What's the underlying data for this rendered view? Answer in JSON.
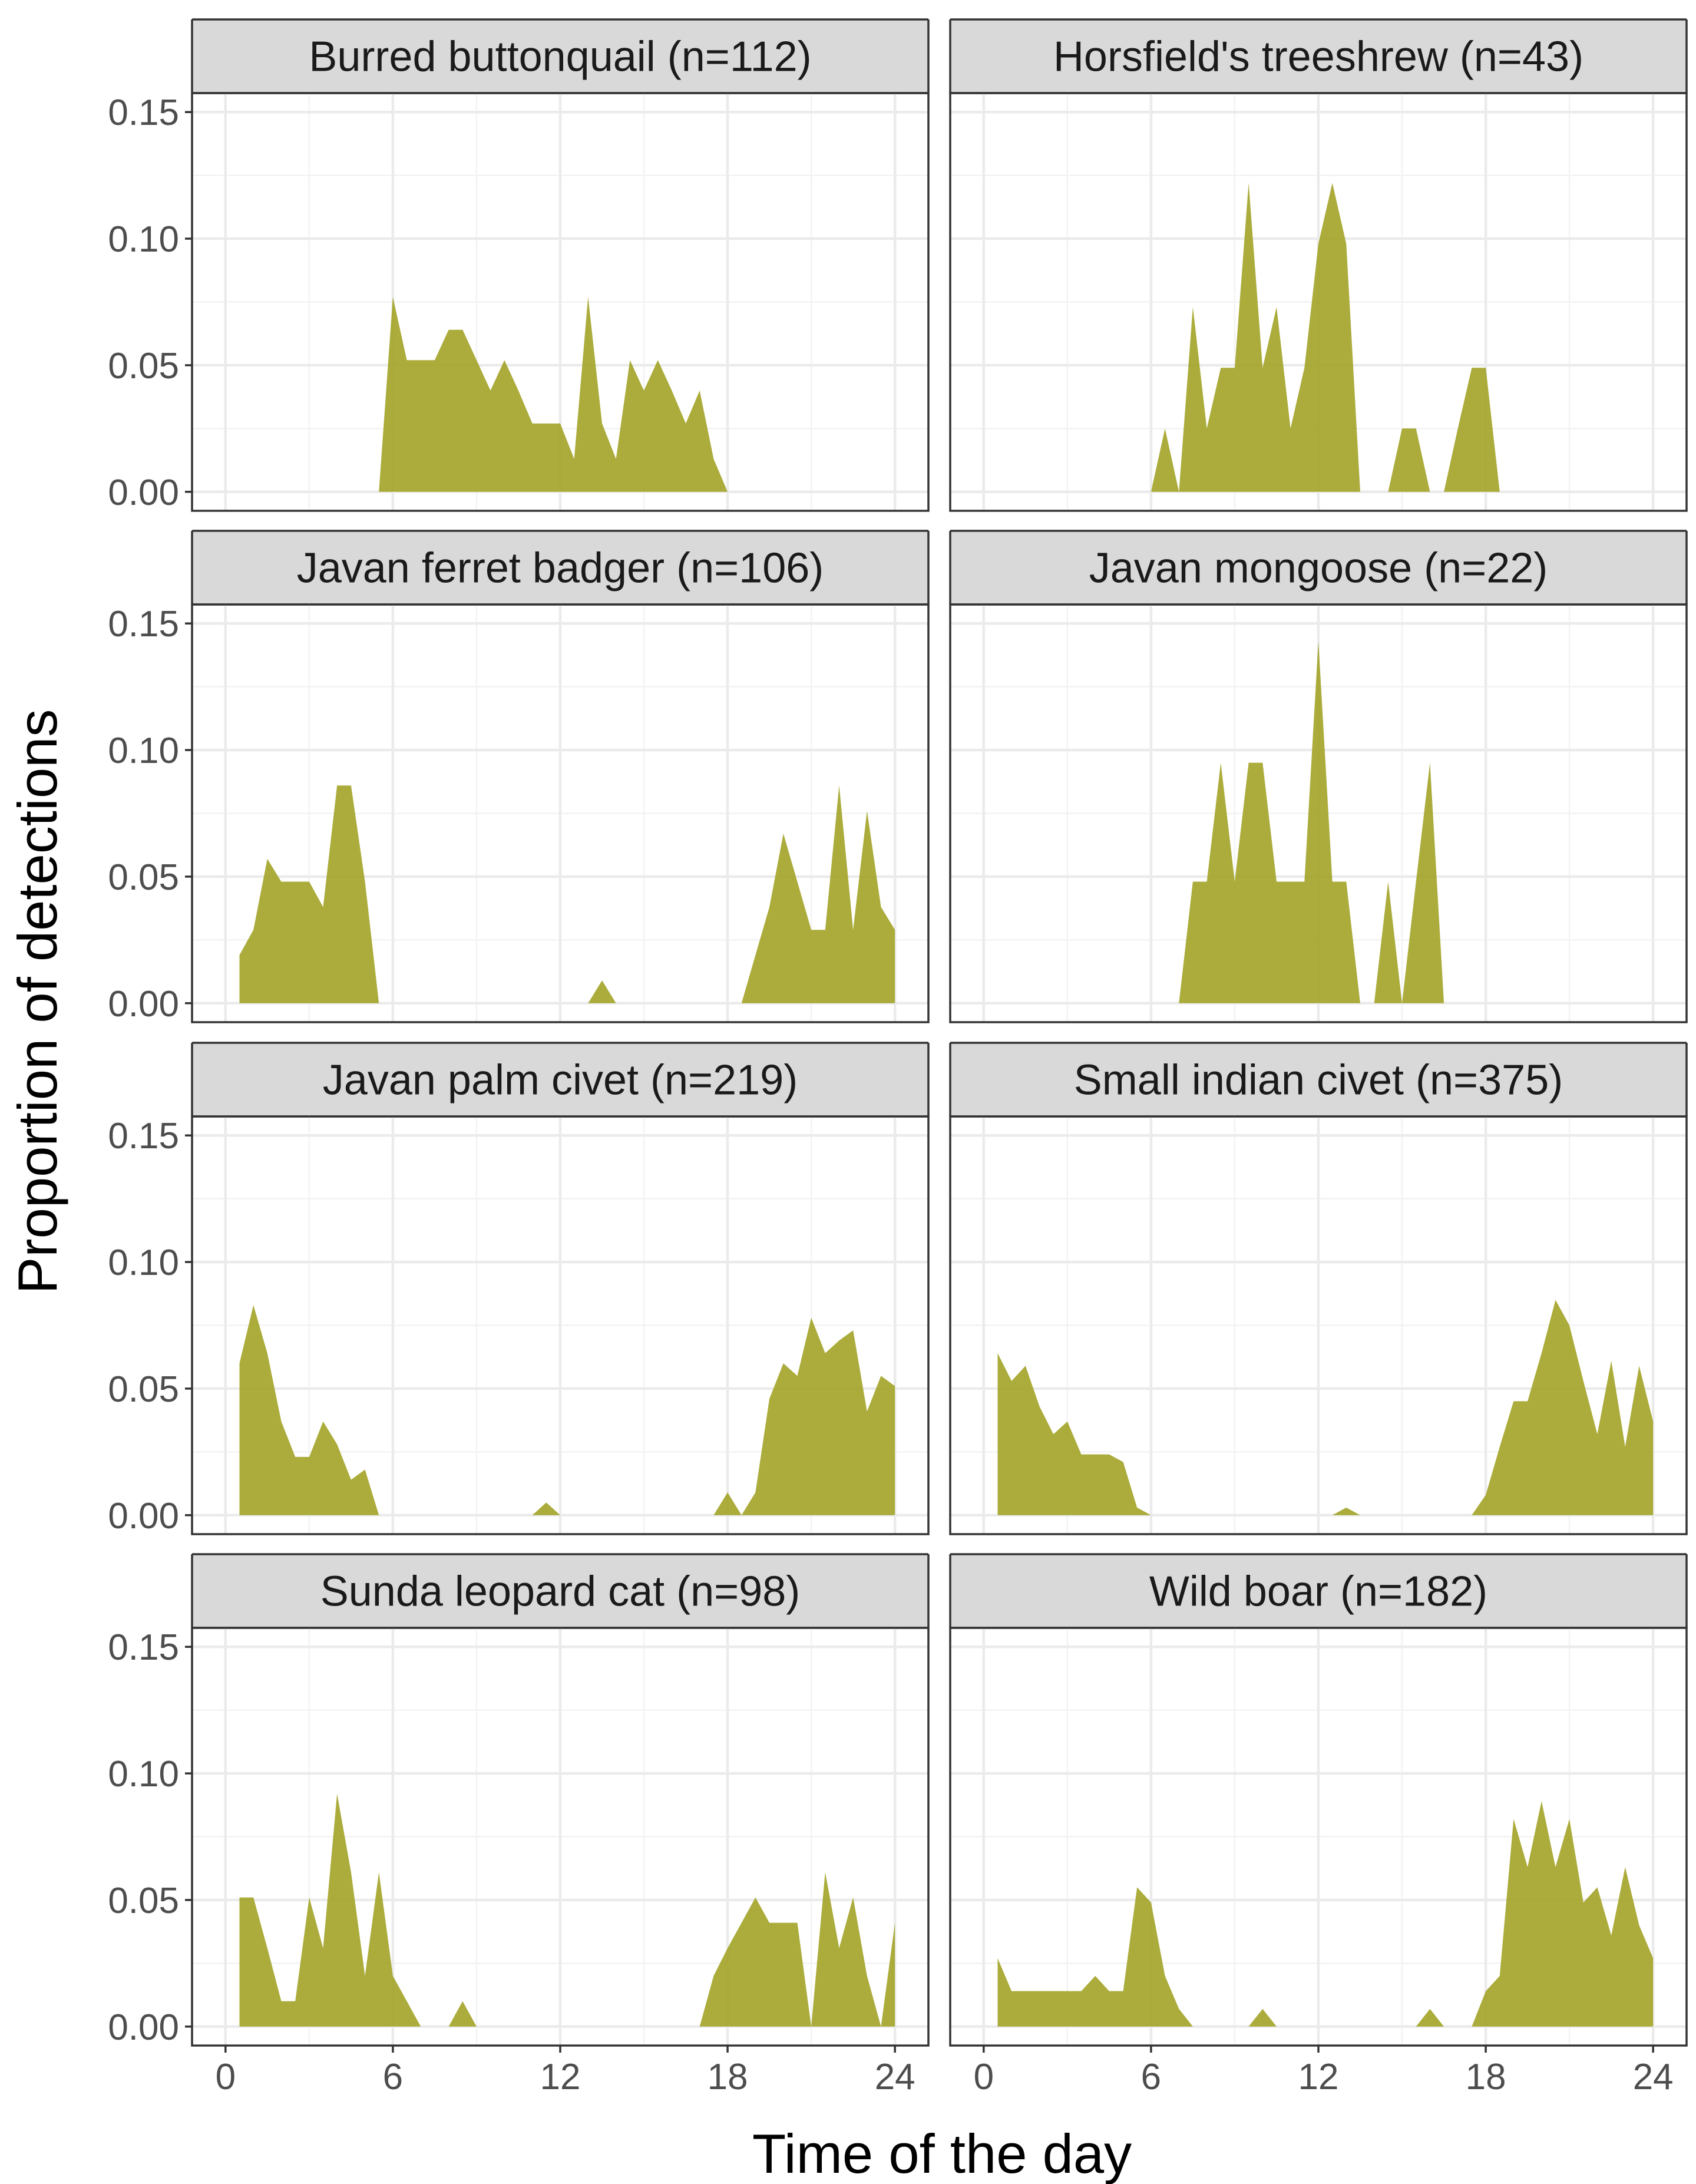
{
  "chart_data": {
    "type": "area",
    "layout": "facet grid, 4 rows x 2 columns",
    "xlabel": "Time of the day",
    "ylabel": "Proportion of detections",
    "xlim": [
      -1.2,
      25.2
    ],
    "ylim": [
      -0.0075,
      0.1575
    ],
    "x_ticks": [
      0,
      6,
      12,
      18,
      24
    ],
    "x_tick_labels": [
      "0",
      "6",
      "12",
      "18",
      "24"
    ],
    "y_ticks": [
      0,
      0.05,
      0.1,
      0.15
    ],
    "y_tick_labels": [
      "0.00",
      "0.05",
      "0.10",
      "0.15"
    ],
    "fill_color": "#9fa020",
    "panels": [
      {
        "title": "Burred buttonquail (n=112)",
        "x": [
          5.5,
          6.0,
          6.5,
          7.0,
          7.5,
          8.0,
          8.5,
          9.0,
          9.5,
          10.0,
          10.5,
          11.0,
          11.5,
          12.0,
          12.5,
          13.0,
          13.5,
          14.0,
          14.5,
          15.0,
          15.5,
          16.0,
          16.5,
          17.0,
          17.5,
          18.0
        ],
        "values": [
          0.0,
          0.077,
          0.052,
          0.052,
          0.052,
          0.064,
          0.064,
          0.052,
          0.04,
          0.052,
          0.04,
          0.027,
          0.027,
          0.027,
          0.013,
          0.077,
          0.027,
          0.013,
          0.052,
          0.04,
          0.052,
          0.04,
          0.027,
          0.04,
          0.013,
          0.0
        ]
      },
      {
        "title": "Horsfield's treeshrew (n=43)",
        "x": [
          6.0,
          6.5,
          7.0,
          7.5,
          8.0,
          8.5,
          9.0,
          9.5,
          10.0,
          10.5,
          11.0,
          11.5,
          12.0,
          12.5,
          13.0,
          13.5,
          14.5,
          15.0,
          15.5,
          16.0,
          16.5,
          17.0,
          17.5,
          18.0,
          18.5
        ],
        "values": [
          0.0,
          0.025,
          0.0,
          0.073,
          0.025,
          0.049,
          0.049,
          0.122,
          0.049,
          0.073,
          0.025,
          0.049,
          0.098,
          0.122,
          0.098,
          0.0,
          0.0,
          0.025,
          0.025,
          0.0,
          0.0,
          0.025,
          0.049,
          0.049,
          0.0
        ]
      },
      {
        "title": "Javan ferret badger (n=106)",
        "x": [
          0.5,
          1.0,
          1.5,
          2.0,
          2.5,
          3.0,
          3.5,
          4.0,
          4.5,
          5.0,
          5.5,
          13.0,
          13.5,
          14.0,
          18.5,
          19.0,
          19.5,
          20.0,
          20.5,
          21.0,
          21.5,
          22.0,
          22.5,
          23.0,
          23.5,
          24.0
        ],
        "values": [
          0.019,
          0.029,
          0.057,
          0.048,
          0.048,
          0.048,
          0.038,
          0.086,
          0.086,
          0.048,
          0.0,
          0.0,
          0.009,
          0.0,
          0.0,
          0.019,
          0.038,
          0.067,
          0.048,
          0.029,
          0.029,
          0.086,
          0.029,
          0.076,
          0.038,
          0.029
        ]
      },
      {
        "title": "Javan mongoose (n=22)",
        "x": [
          7.0,
          7.5,
          8.0,
          8.5,
          9.0,
          9.5,
          10.0,
          10.5,
          11.0,
          11.5,
          12.0,
          12.5,
          13.0,
          13.5,
          14.0,
          14.5,
          15.0,
          15.5,
          16.0,
          16.5
        ],
        "values": [
          0.0,
          0.048,
          0.048,
          0.095,
          0.048,
          0.095,
          0.095,
          0.048,
          0.048,
          0.048,
          0.143,
          0.048,
          0.048,
          0.0,
          0.0,
          0.048,
          0.0,
          0.048,
          0.095,
          0.0
        ]
      },
      {
        "title": "Javan palm civet (n=219)",
        "x": [
          0.5,
          1.0,
          1.5,
          2.0,
          2.5,
          3.0,
          3.5,
          4.0,
          4.5,
          5.0,
          5.5,
          11.0,
          11.5,
          12.0,
          17.5,
          18.0,
          18.5,
          19.0,
          19.5,
          20.0,
          20.5,
          21.0,
          21.5,
          22.0,
          22.5,
          23.0,
          23.5,
          24.0
        ],
        "values": [
          0.06,
          0.083,
          0.064,
          0.037,
          0.023,
          0.023,
          0.037,
          0.028,
          0.014,
          0.018,
          0.0,
          0.0,
          0.005,
          0.0,
          0.0,
          0.009,
          0.0,
          0.009,
          0.046,
          0.06,
          0.055,
          0.078,
          0.064,
          0.069,
          0.073,
          0.041,
          0.055,
          0.051
        ]
      },
      {
        "title": "Small indian civet (n=375)",
        "x": [
          0.5,
          1.0,
          1.5,
          2.0,
          2.5,
          3.0,
          3.5,
          4.0,
          4.5,
          5.0,
          5.5,
          6.0,
          12.5,
          13.0,
          13.5,
          17.5,
          18.0,
          18.5,
          19.0,
          19.5,
          20.0,
          20.5,
          21.0,
          21.5,
          22.0,
          22.5,
          23.0,
          23.5,
          24.0
        ],
        "values": [
          0.064,
          0.053,
          0.059,
          0.043,
          0.032,
          0.037,
          0.024,
          0.024,
          0.024,
          0.021,
          0.003,
          0.0,
          0.0,
          0.003,
          0.0,
          0.0,
          0.008,
          0.027,
          0.045,
          0.045,
          0.064,
          0.085,
          0.075,
          0.053,
          0.032,
          0.061,
          0.027,
          0.059,
          0.037
        ]
      },
      {
        "title": "Sunda leopard cat (n=98)",
        "x": [
          0.5,
          1.0,
          1.5,
          2.0,
          2.5,
          3.0,
          3.5,
          4.0,
          4.5,
          5.0,
          5.5,
          6.0,
          6.5,
          7.0,
          8.0,
          8.5,
          9.0,
          17.0,
          17.5,
          18.0,
          18.5,
          19.0,
          19.5,
          20.0,
          20.5,
          21.0,
          21.5,
          22.0,
          22.5,
          23.0,
          23.5,
          24.0
        ],
        "values": [
          0.051,
          0.051,
          0.031,
          0.01,
          0.01,
          0.051,
          0.031,
          0.092,
          0.061,
          0.02,
          0.061,
          0.02,
          0.01,
          0.0,
          0.0,
          0.01,
          0.0,
          0.0,
          0.02,
          0.031,
          0.041,
          0.051,
          0.041,
          0.041,
          0.041,
          0.0,
          0.061,
          0.031,
          0.051,
          0.02,
          0.0,
          0.041
        ]
      },
      {
        "title": "Wild boar (n=182)",
        "x": [
          0.5,
          1.0,
          1.5,
          2.0,
          2.5,
          3.0,
          3.5,
          4.0,
          4.5,
          5.0,
          5.5,
          6.0,
          6.5,
          7.0,
          7.5,
          9.5,
          10.0,
          10.5,
          15.5,
          16.0,
          16.5,
          17.5,
          18.0,
          18.5,
          19.0,
          19.5,
          20.0,
          20.5,
          21.0,
          21.5,
          22.0,
          22.5,
          23.0,
          23.5,
          24.0
        ],
        "values": [
          0.027,
          0.014,
          0.014,
          0.014,
          0.014,
          0.014,
          0.014,
          0.02,
          0.014,
          0.014,
          0.055,
          0.049,
          0.02,
          0.007,
          0.0,
          0.0,
          0.007,
          0.0,
          0.0,
          0.007,
          0.0,
          0.0,
          0.014,
          0.02,
          0.082,
          0.063,
          0.089,
          0.063,
          0.082,
          0.049,
          0.055,
          0.036,
          0.063,
          0.04,
          0.027
        ]
      }
    ]
  }
}
